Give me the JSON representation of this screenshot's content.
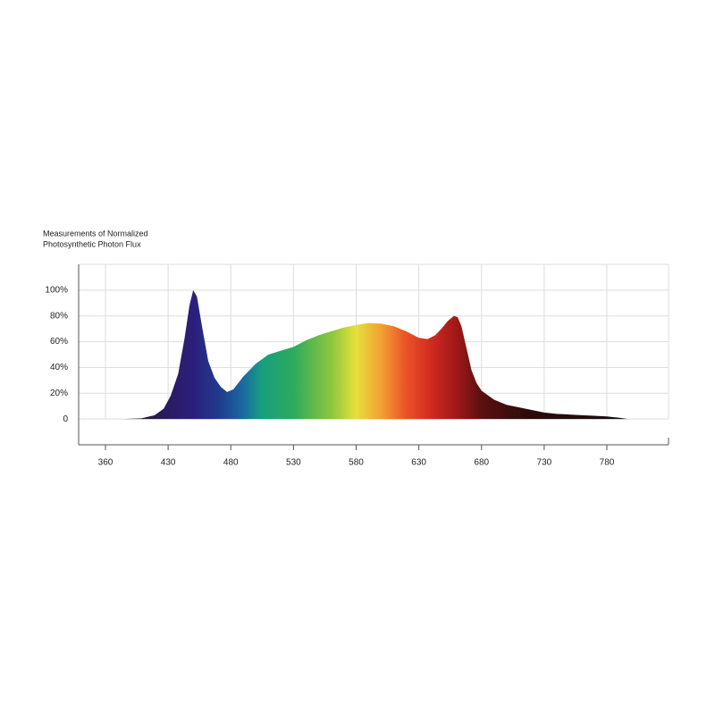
{
  "chart_data": {
    "type": "area",
    "title": [
      "Measurements of Normalized",
      "Photosynthetic Photon Flux"
    ],
    "x": [
      380,
      400,
      415,
      425,
      432,
      438,
      443,
      447,
      450,
      453,
      457,
      462,
      467,
      472,
      477,
      482,
      490,
      500,
      510,
      520,
      530,
      540,
      550,
      560,
      570,
      580,
      590,
      600,
      610,
      620,
      630,
      637,
      643,
      648,
      653,
      658,
      661,
      664,
      668,
      672,
      676,
      680,
      690,
      700,
      710,
      720,
      730,
      740,
      750,
      760,
      770,
      780,
      790,
      797
    ],
    "values": [
      0,
      0.5,
      3,
      8,
      18,
      35,
      62,
      88,
      100,
      95,
      72,
      45,
      32,
      25,
      21,
      23,
      33,
      43,
      50,
      53,
      56,
      61,
      65,
      68,
      71,
      73,
      74.5,
      74,
      72,
      68,
      63,
      62,
      65,
      70,
      76,
      80,
      79,
      72,
      55,
      38,
      28,
      22,
      15,
      11,
      9,
      7,
      5,
      4,
      3.5,
      3,
      2.5,
      2,
      1,
      0
    ],
    "xlim": [
      330,
      829
    ],
    "xticks": [
      360,
      430,
      480,
      530,
      580,
      630,
      680,
      730,
      780
    ],
    "ylim": [
      -20,
      120
    ],
    "yticks": [
      0,
      {
        "value": 20,
        "label": "20%"
      },
      {
        "value": 40,
        "label": "40%"
      },
      {
        "value": 60,
        "label": "60%"
      },
      {
        "value": 80,
        "label": "80%"
      },
      {
        "value": 100,
        "label": "100%"
      }
    ],
    "grid": true,
    "gradient": [
      [
        380,
        "#1a1420"
      ],
      [
        420,
        "#2a1a55"
      ],
      [
        450,
        "#2c1f7c"
      ],
      [
        470,
        "#203a8c"
      ],
      [
        490,
        "#1a6aa2"
      ],
      [
        505,
        "#17a07c"
      ],
      [
        530,
        "#2eaa5c"
      ],
      [
        560,
        "#8cc63e"
      ],
      [
        580,
        "#e6e03c"
      ],
      [
        600,
        "#f2a032"
      ],
      [
        620,
        "#ea5228"
      ],
      [
        640,
        "#d02a20"
      ],
      [
        660,
        "#a01818"
      ],
      [
        680,
        "#5a1010"
      ],
      [
        720,
        "#2a0a0a"
      ],
      [
        797,
        "#151010"
      ]
    ]
  }
}
